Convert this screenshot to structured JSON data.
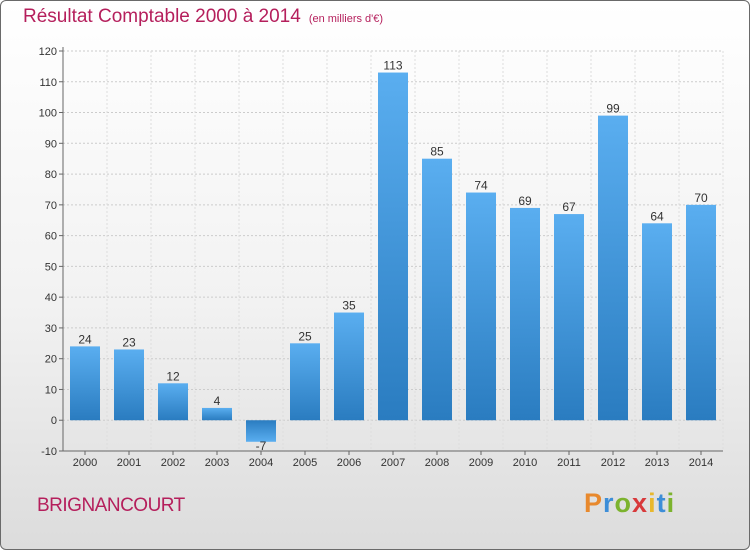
{
  "header": {
    "title": "Résultat Comptable 2000 à 2014",
    "subtitle": "(en milliers d'€)"
  },
  "footer": {
    "city": "BRIGNANCOURT",
    "logo": {
      "letters": [
        "P",
        "r",
        "o",
        "x",
        "i",
        "t",
        "i"
      ],
      "colors": [
        "#e8892d",
        "#3d8ed8",
        "#7cb32e",
        "#d8393b",
        "#e8b82d",
        "#3d8ed8",
        "#7cb32e"
      ]
    }
  },
  "chart_data": {
    "type": "bar",
    "title": "Résultat Comptable 2000 à 2014",
    "subtitle": "(en milliers d'€)",
    "categories": [
      "2000",
      "2001",
      "2002",
      "2003",
      "2004",
      "2005",
      "2006",
      "2007",
      "2008",
      "2009",
      "2010",
      "2011",
      "2012",
      "2013",
      "2014"
    ],
    "values": [
      24,
      23,
      12,
      4,
      -7,
      25,
      35,
      113,
      85,
      74,
      69,
      67,
      99,
      64,
      70
    ],
    "ylim": [
      -10,
      120
    ],
    "yticks": [
      -10,
      0,
      10,
      20,
      30,
      40,
      50,
      60,
      70,
      80,
      90,
      100,
      110,
      120
    ],
    "grid": true,
    "bar_color": "#3f97dd",
    "title_color": "#b51f5c"
  }
}
